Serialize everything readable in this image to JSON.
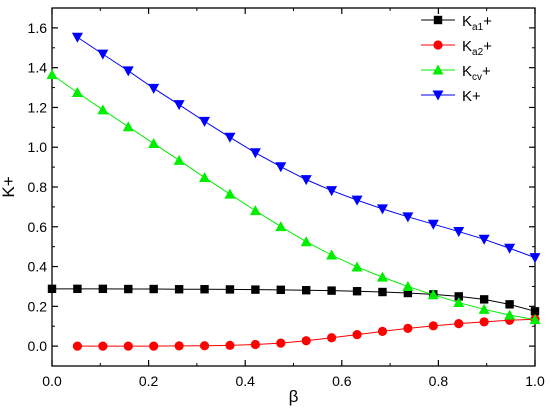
{
  "chart_data": {
    "type": "line",
    "xlabel": "β",
    "ylabel": "K+",
    "xlim": [
      0.0,
      1.0
    ],
    "ylim": [
      -0.1,
      1.7
    ],
    "xticks": [
      0.0,
      0.2,
      0.4,
      0.6,
      0.8,
      1.0
    ],
    "xtick_labels": [
      "0.0",
      "0.2",
      "0.4",
      "0.6",
      "0.8",
      "1.0"
    ],
    "yticks": [
      0.0,
      0.2,
      0.4,
      0.6,
      0.8,
      1.0,
      1.2,
      1.4,
      1.6
    ],
    "ytick_labels": [
      "0.0",
      "0.2",
      "0.4",
      "0.6",
      "0.8",
      "1.0",
      "1.2",
      "1.4",
      "1.6"
    ],
    "grid": false,
    "legend_position": "top-right",
    "series": [
      {
        "name": "Ka1+",
        "label_main": "K",
        "label_sub": "a1",
        "label_end": "+",
        "color": "#000000",
        "marker": "square",
        "x": [
          0.0,
          0.0526,
          0.1053,
          0.1579,
          0.2105,
          0.2632,
          0.3158,
          0.3684,
          0.4211,
          0.4737,
          0.5263,
          0.5789,
          0.6316,
          0.6842,
          0.7368,
          0.7895,
          0.8421,
          0.8947,
          0.9474,
          1.0
        ],
        "values": [
          0.288,
          0.288,
          0.288,
          0.287,
          0.287,
          0.286,
          0.286,
          0.285,
          0.284,
          0.283,
          0.281,
          0.279,
          0.276,
          0.272,
          0.267,
          0.26,
          0.25,
          0.235,
          0.21,
          0.175
        ]
      },
      {
        "name": "Ka2+",
        "label_main": "K",
        "label_sub": "a2",
        "label_end": "+",
        "color": "#ff0000",
        "marker": "circle",
        "x": [
          0.0526,
          0.1053,
          0.1579,
          0.2105,
          0.2632,
          0.3158,
          0.3684,
          0.4211,
          0.4737,
          0.5263,
          0.5789,
          0.6316,
          0.6842,
          0.7368,
          0.7895,
          0.8421,
          0.8947,
          0.9474,
          1.0
        ],
        "values": [
          0.0,
          0.0,
          0.0,
          0.0,
          0.001,
          0.002,
          0.004,
          0.008,
          0.015,
          0.027,
          0.042,
          0.058,
          0.074,
          0.089,
          0.102,
          0.113,
          0.122,
          0.13,
          0.135
        ]
      },
      {
        "name": "Kcv+",
        "label_main": "K",
        "label_sub": "cv",
        "label_end": "+",
        "color": "#00ee00",
        "marker": "triangle-up",
        "x": [
          0.0,
          0.0526,
          0.1053,
          0.1579,
          0.2105,
          0.2632,
          0.3158,
          0.3684,
          0.4211,
          0.4737,
          0.5263,
          0.5789,
          0.6316,
          0.6842,
          0.7368,
          0.7895,
          0.8421,
          0.8947,
          0.9474,
          1.0
        ],
        "values": [
          1.365,
          1.275,
          1.188,
          1.103,
          1.019,
          0.934,
          0.848,
          0.764,
          0.681,
          0.601,
          0.525,
          0.458,
          0.398,
          0.347,
          0.3,
          0.258,
          0.219,
          0.185,
          0.156,
          0.133
        ]
      },
      {
        "name": "K+",
        "label_main": "K+",
        "label_sub": "",
        "label_end": "",
        "color": "#0000ff",
        "marker": "triangle-down",
        "x": [
          0.0526,
          0.1053,
          0.1579,
          0.2105,
          0.2632,
          0.3158,
          0.3684,
          0.4211,
          0.4737,
          0.5263,
          0.5789,
          0.6316,
          0.6842,
          0.7368,
          0.7895,
          0.8421,
          0.8947,
          0.9474,
          1.0
        ],
        "values": [
          1.553,
          1.468,
          1.384,
          1.296,
          1.214,
          1.13,
          1.05,
          0.972,
          0.902,
          0.837,
          0.782,
          0.734,
          0.69,
          0.65,
          0.613,
          0.576,
          0.537,
          0.492,
          0.445
        ]
      }
    ]
  }
}
